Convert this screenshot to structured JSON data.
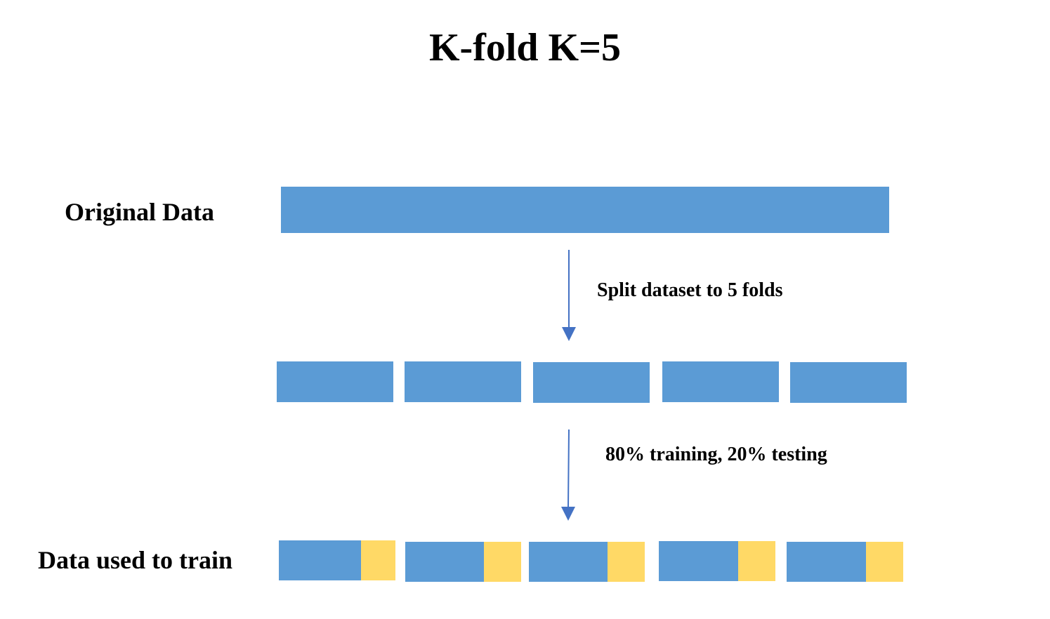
{
  "title": "K-fold K=5",
  "labels": {
    "original_data": "Original Data",
    "data_used_to_train": "Data used to train"
  },
  "steps": {
    "split": "Split dataset to 5 folds",
    "train_test": "80% training, 20% testing"
  },
  "folds": 5,
  "train_fraction": 0.8,
  "test_fraction": 0.2,
  "colors": {
    "data": "#5b9bd5",
    "testing": "#ffd966",
    "arrow": "#4472c4",
    "text": "#000000"
  }
}
